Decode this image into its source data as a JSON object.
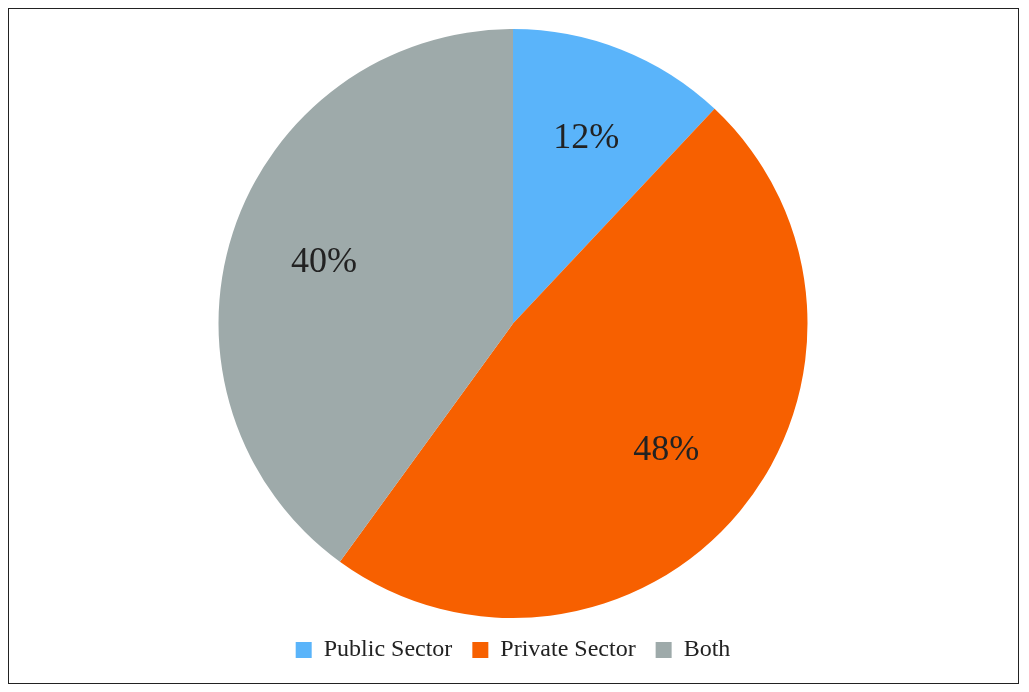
{
  "chart_data": {
    "type": "pie",
    "categories": [
      "Public Sector",
      "Private Sector",
      "Both"
    ],
    "values": [
      12,
      48,
      40
    ],
    "colors": [
      "#5ab4fa",
      "#f76000",
      "#9eaaaa"
    ],
    "value_labels": [
      "12%",
      "48%",
      "40%"
    ],
    "legend": "bottom"
  }
}
